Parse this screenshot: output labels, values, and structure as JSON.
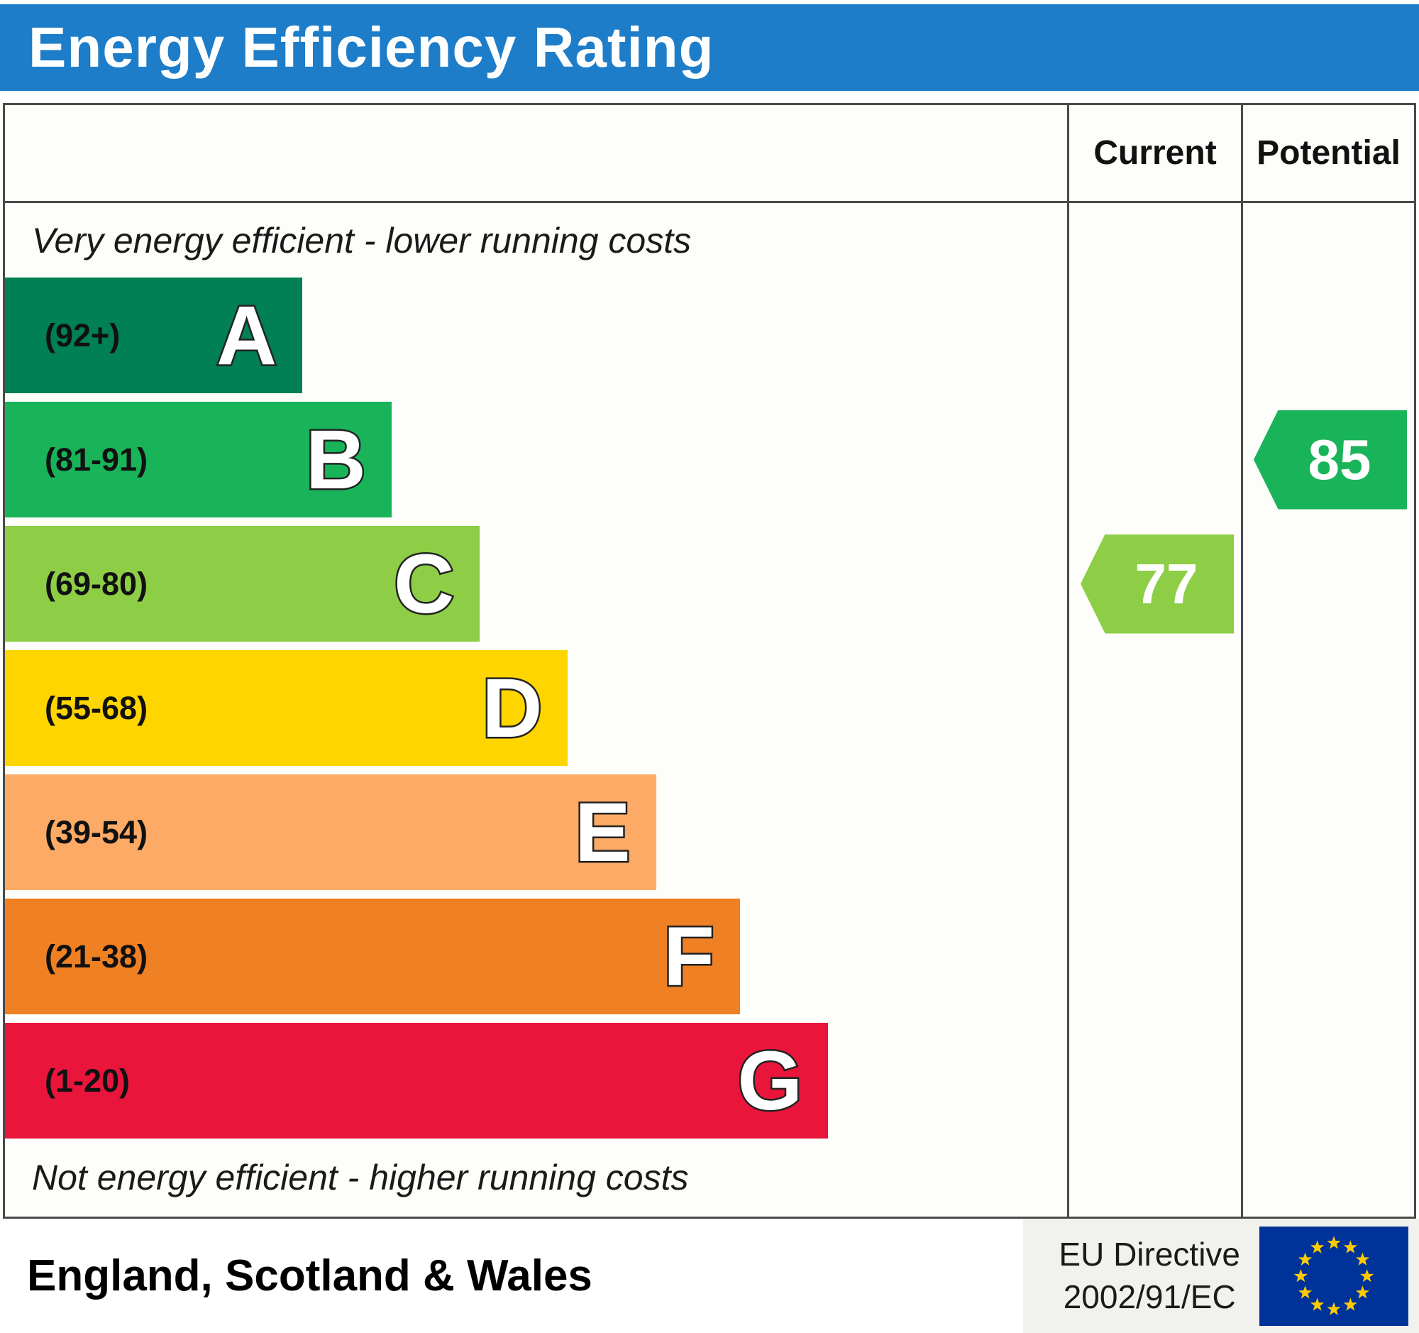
{
  "header": {
    "title": "Energy Efficiency Rating"
  },
  "columns": {
    "current": "Current",
    "potential": "Potential"
  },
  "captions": {
    "top": "Very energy efficient - lower running costs",
    "bottom": "Not energy efficient - higher running costs"
  },
  "chart_data": {
    "type": "bar",
    "subtype": "epc-energy-efficiency-rating",
    "orientation": "horizontal",
    "title": "Energy Efficiency Rating",
    "bands": [
      {
        "letter": "A",
        "range": "(92+)",
        "min": 92,
        "color": "#008054",
        "width_pct": 28.0
      },
      {
        "letter": "B",
        "range": "(81-91)",
        "min": 81,
        "color": "#19b459",
        "width_pct": 36.4
      },
      {
        "letter": "C",
        "range": "(69-80)",
        "min": 69,
        "color": "#8dce46",
        "width_pct": 44.7
      },
      {
        "letter": "D",
        "range": "(55-68)",
        "min": 55,
        "color": "#ffd500",
        "width_pct": 53.0
      },
      {
        "letter": "E",
        "range": "(39-54)",
        "min": 39,
        "color": "#fcaa65",
        "width_pct": 61.3
      },
      {
        "letter": "F",
        "range": "(21-38)",
        "min": 21,
        "color": "#ef8023",
        "width_pct": 69.2
      },
      {
        "letter": "G",
        "range": "(1-20)",
        "min": 1,
        "color": "#e9153b",
        "width_pct": 77.5
      }
    ],
    "current": {
      "label": "Current",
      "value": 77,
      "band": "C",
      "color": "#8dce46"
    },
    "potential": {
      "label": "Potential",
      "value": 85,
      "band": "B",
      "color": "#19b459"
    }
  },
  "footer": {
    "region": "England, Scotland & Wales",
    "directive_line1": "EU Directive",
    "directive_line2": "2002/91/EC",
    "flag_icon": "eu-flag"
  },
  "colors": {
    "header_blue": "#1e7dc8",
    "frame_border": "#4a4a4a",
    "flag_blue": "#003399",
    "star_yellow": "#ffcc00"
  }
}
